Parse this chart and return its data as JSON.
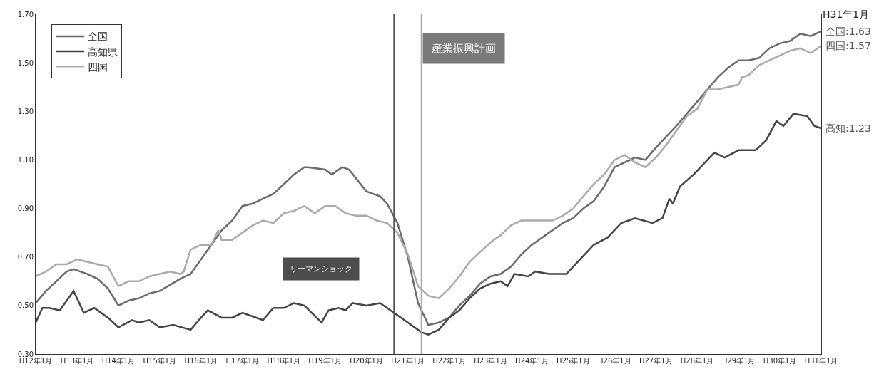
{
  "chart_data": {
    "type": "line",
    "xlim": [
      "2000-01",
      "2019-01"
    ],
    "xticks": [
      {
        "value": "2000-01",
        "label": "H12年1月"
      },
      {
        "value": "2001-01",
        "label": "H13年1月"
      },
      {
        "value": "2002-01",
        "label": "H14年1月"
      },
      {
        "value": "2003-01",
        "label": "H15年1月"
      },
      {
        "value": "2004-01",
        "label": "H16年1月"
      },
      {
        "value": "2005-01",
        "label": "H17年1月"
      },
      {
        "value": "2006-01",
        "label": "H18年1月"
      },
      {
        "value": "2007-01",
        "label": "H19年1月"
      },
      {
        "value": "2008-01",
        "label": "H20年1月"
      },
      {
        "value": "2009-01",
        "label": "H21年1月"
      },
      {
        "value": "2010-01",
        "label": "H22年1月"
      },
      {
        "value": "2011-01",
        "label": "H23年1月"
      },
      {
        "value": "2012-01",
        "label": "H24年1月"
      },
      {
        "value": "2013-01",
        "label": "H25年1月"
      },
      {
        "value": "2014-01",
        "label": "H26年1月"
      },
      {
        "value": "2015-01",
        "label": "H27年1月"
      },
      {
        "value": "2016-01",
        "label": "H28年1月"
      },
      {
        "value": "2017-01",
        "label": "H29年1月"
      },
      {
        "value": "2018-01",
        "label": "H30年1月"
      },
      {
        "value": "2019-01",
        "label": "H31年1月"
      }
    ],
    "ylim": [
      0.3,
      1.7
    ],
    "yticks": [
      {
        "value": 0.3,
        "label": "0.30"
      },
      {
        "value": 0.5,
        "label": "0.50"
      },
      {
        "value": 0.7,
        "label": "0.70"
      },
      {
        "value": 0.9,
        "label": "0.90"
      },
      {
        "value": 1.1,
        "label": "1.10"
      },
      {
        "value": 1.3,
        "label": "1.30"
      },
      {
        "value": 1.5,
        "label": "1.50"
      },
      {
        "value": 1.7,
        "label": "1.70"
      }
    ],
    "legend": "top left",
    "series": [
      {
        "name": "全国",
        "color": "#6a6a6a",
        "x": [
          "2000-01",
          "2000-04",
          "2000-07",
          "2000-10",
          "2000-12",
          "2001-04",
          "2001-07",
          "2001-10",
          "2002-01",
          "2002-04",
          "2002-07",
          "2002-10",
          "2003-01",
          "2003-07",
          "2003-10",
          "2004-01",
          "2004-04",
          "2004-07",
          "2004-10",
          "2005-01",
          "2005-04",
          "2005-07",
          "2005-10",
          "2006-01",
          "2006-04",
          "2006-07",
          "2006-08",
          "2007-01",
          "2007-03",
          "2007-06",
          "2007-08",
          "2008-01",
          "2008-05",
          "2008-07",
          "2008-10",
          "2009-01",
          "2009-04",
          "2009-07",
          "2009-10",
          "2010-01",
          "2010-04",
          "2010-07",
          "2010-10",
          "2011-01",
          "2011-04",
          "2011-07",
          "2011-10",
          "2012-01",
          "2012-04",
          "2012-07",
          "2012-10",
          "2013-01",
          "2013-04",
          "2013-07",
          "2013-10",
          "2014-01",
          "2014-07",
          "2014-10",
          "2015-01",
          "2015-07",
          "2016-01",
          "2016-04",
          "2016-07",
          "2016-10",
          "2017-01",
          "2017-04",
          "2017-07",
          "2017-10",
          "2018-01",
          "2018-04",
          "2018-07",
          "2018-10",
          "2019-01"
        ],
        "values": [
          0.51,
          0.56,
          0.6,
          0.64,
          0.65,
          0.63,
          0.61,
          0.57,
          0.5,
          0.52,
          0.53,
          0.55,
          0.56,
          0.61,
          0.63,
          0.69,
          0.75,
          0.81,
          0.85,
          0.91,
          0.92,
          0.94,
          0.96,
          1.0,
          1.04,
          1.07,
          1.07,
          1.06,
          1.04,
          1.07,
          1.06,
          0.97,
          0.95,
          0.92,
          0.84,
          0.7,
          0.51,
          0.42,
          0.43,
          0.45,
          0.5,
          0.54,
          0.59,
          0.62,
          0.63,
          0.66,
          0.71,
          0.75,
          0.78,
          0.81,
          0.84,
          0.86,
          0.9,
          0.93,
          0.99,
          1.07,
          1.11,
          1.1,
          1.15,
          1.24,
          1.34,
          1.39,
          1.44,
          1.48,
          1.51,
          1.51,
          1.52,
          1.56,
          1.58,
          1.59,
          1.62,
          1.61,
          1.63
        ]
      },
      {
        "name": "高知県",
        "color": "#444444",
        "x": [
          "2000-01",
          "2000-03",
          "2000-05",
          "2000-08",
          "2000-12",
          "2001-03",
          "2001-06",
          "2001-10",
          "2002-01",
          "2002-05",
          "2002-07",
          "2002-10",
          "2003-01",
          "2003-05",
          "2003-10",
          "2004-01",
          "2004-03",
          "2004-07",
          "2004-10",
          "2005-01",
          "2005-07",
          "2005-10",
          "2006-01",
          "2006-04",
          "2006-07",
          "2006-12",
          "2007-02",
          "2007-05",
          "2007-07",
          "2007-09",
          "2008-01",
          "2008-05",
          "2008-07",
          "2008-10",
          "2009-01",
          "2009-05",
          "2009-07",
          "2009-10",
          "2010-01",
          "2010-04",
          "2010-07",
          "2010-10",
          "2011-01",
          "2011-04",
          "2011-06",
          "2011-08",
          "2011-12",
          "2012-02",
          "2012-06",
          "2012-11",
          "2013-01",
          "2013-07",
          "2013-11",
          "2014-03",
          "2014-07",
          "2014-12",
          "2015-03",
          "2015-05",
          "2015-06",
          "2015-08",
          "2015-12",
          "2016-06",
          "2016-09",
          "2017-01",
          "2017-06",
          "2017-09",
          "2017-12",
          "2018-02",
          "2018-05",
          "2018-09",
          "2018-11",
          "2019-01"
        ],
        "values": [
          0.43,
          0.49,
          0.49,
          0.48,
          0.56,
          0.47,
          0.49,
          0.45,
          0.41,
          0.44,
          0.43,
          0.44,
          0.41,
          0.42,
          0.4,
          0.45,
          0.48,
          0.45,
          0.45,
          0.47,
          0.44,
          0.49,
          0.49,
          0.51,
          0.5,
          0.43,
          0.48,
          0.49,
          0.48,
          0.51,
          0.5,
          0.51,
          0.49,
          0.46,
          0.43,
          0.39,
          0.38,
          0.4,
          0.45,
          0.48,
          0.53,
          0.57,
          0.59,
          0.6,
          0.58,
          0.63,
          0.62,
          0.64,
          0.63,
          0.63,
          0.66,
          0.75,
          0.78,
          0.84,
          0.86,
          0.84,
          0.86,
          0.94,
          0.92,
          0.99,
          1.04,
          1.13,
          1.11,
          1.14,
          1.14,
          1.18,
          1.26,
          1.24,
          1.29,
          1.28,
          1.24,
          1.23
        ]
      },
      {
        "name": "四国",
        "color": "#aaaaaa",
        "x": [
          "2000-01",
          "2000-04",
          "2000-07",
          "2000-10",
          "2001-01",
          "2001-04",
          "2001-07",
          "2001-10",
          "2002-01",
          "2002-04",
          "2002-07",
          "2002-10",
          "2003-01",
          "2003-04",
          "2003-07",
          "2003-08",
          "2003-10",
          "2004-01",
          "2004-04",
          "2004-06",
          "2004-07",
          "2004-10",
          "2005-01",
          "2005-04",
          "2005-07",
          "2005-10",
          "2006-01",
          "2006-04",
          "2006-07",
          "2006-10",
          "2007-01",
          "2007-04",
          "2007-07",
          "2007-10",
          "2008-01",
          "2008-04",
          "2008-07",
          "2008-10",
          "2009-01",
          "2009-04",
          "2009-07",
          "2009-10",
          "2010-01",
          "2010-04",
          "2010-07",
          "2010-10",
          "2011-01",
          "2011-04",
          "2011-07",
          "2011-10",
          "2012-01",
          "2012-04",
          "2012-07",
          "2012-10",
          "2013-01",
          "2013-04",
          "2013-07",
          "2013-10",
          "2014-01",
          "2014-04",
          "2014-07",
          "2014-10",
          "2015-01",
          "2015-04",
          "2015-07",
          "2015-10",
          "2016-01",
          "2016-04",
          "2016-07",
          "2016-10",
          "2017-01",
          "2017-02",
          "2017-04",
          "2017-07",
          "2017-10",
          "2018-01",
          "2018-04",
          "2018-07",
          "2018-10",
          "2019-01"
        ],
        "values": [
          0.62,
          0.64,
          0.67,
          0.67,
          0.69,
          0.68,
          0.67,
          0.66,
          0.58,
          0.6,
          0.6,
          0.62,
          0.63,
          0.64,
          0.63,
          0.64,
          0.73,
          0.75,
          0.75,
          0.81,
          0.77,
          0.77,
          0.8,
          0.83,
          0.85,
          0.84,
          0.88,
          0.89,
          0.91,
          0.88,
          0.91,
          0.91,
          0.88,
          0.87,
          0.87,
          0.85,
          0.84,
          0.8,
          0.71,
          0.58,
          0.54,
          0.53,
          0.57,
          0.62,
          0.68,
          0.72,
          0.76,
          0.79,
          0.83,
          0.85,
          0.85,
          0.85,
          0.85,
          0.87,
          0.9,
          0.95,
          1.0,
          1.04,
          1.1,
          1.12,
          1.09,
          1.07,
          1.11,
          1.16,
          1.22,
          1.28,
          1.31,
          1.39,
          1.39,
          1.4,
          1.41,
          1.44,
          1.45,
          1.49,
          1.51,
          1.53,
          1.55,
          1.56,
          1.54,
          1.57
        ]
      }
    ],
    "ref_lines": [
      {
        "axis": "x",
        "value": "2008-09",
        "color": "#555555"
      },
      {
        "axis": "x",
        "value": "2009-05",
        "color": "#aaaaaa"
      }
    ],
    "annotations": [
      "産業振興計画",
      "リーマンショック",
      "H31年1月",
      {
        "text": "全国:1.63",
        "x": "2019-01",
        "y": 1.63
      },
      {
        "text": "四国:1.57",
        "x": "2019-01",
        "y": 1.57
      },
      {
        "text": "高知:1.23",
        "x": "2019-01",
        "y": 1.23
      }
    ]
  }
}
